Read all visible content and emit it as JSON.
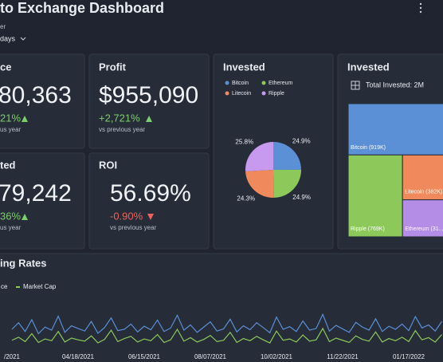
{
  "header": {
    "title": "to Exchange Dashboard",
    "filter_label": "er",
    "filter_value": "days"
  },
  "cards": [
    {
      "title": "ce",
      "value": "80,363",
      "change": "21%",
      "note": "us year"
    },
    {
      "title": "Profit",
      "value": "$955,090",
      "change": "+2,721%",
      "note": "vs previous year"
    },
    {
      "title": "ted",
      "value": "79,242",
      "change": "36%",
      "note": "us year"
    },
    {
      "title": "ROI",
      "value": "56.69%",
      "change": "-0.90%",
      "note": "vs previous year"
    }
  ],
  "chart_data": [
    {
      "type": "pie",
      "title": "Invested",
      "categories": [
        "Bitcoin",
        "Ethereum",
        "Litecoin",
        "Ripple"
      ],
      "values": [
        24.9,
        24.9,
        24.3,
        25.8
      ],
      "value_labels": [
        "24.9%",
        "24.9%",
        "24.3%",
        "25.8%"
      ],
      "colors": [
        "#5b8fd6",
        "#8dc85a",
        "#f08a5d",
        "#c79af0"
      ]
    },
    {
      "type": "treemap",
      "title": "Invested",
      "subtitle": "Total Invested: 2M",
      "values": [
        919000,
        769000,
        382000,
        315000
      ],
      "value_labels": [
        "Bitcoin (919K)",
        "Ripple (769K)",
        "Litecoin (382K)",
        "Ethereum (31..."
      ],
      "colors": [
        "#5b8fd6",
        "#8dc85a",
        "#f08a5d",
        "#b48ee6"
      ]
    },
    {
      "type": "line",
      "title": "ing Rates",
      "ylim": [
        0,
        100
      ],
      "categories": [
        "/2021",
        null,
        null,
        null,
        null,
        null,
        null,
        null,
        null,
        null,
        "04/18/2021",
        null,
        null,
        null,
        null,
        null,
        null,
        null,
        null,
        null,
        "06/15/2021",
        null,
        null,
        null,
        null,
        null,
        null,
        null,
        null,
        null,
        "08/07/2021",
        null,
        null,
        null,
        null,
        null,
        null,
        null,
        null,
        null,
        "10/02/2021",
        null,
        null,
        null,
        null,
        null,
        null,
        null,
        null,
        null,
        "11/22/2021",
        null,
        null,
        null,
        null,
        null,
        null,
        null,
        null,
        null,
        "01/17/2022",
        null,
        null,
        null,
        null,
        null
      ],
      "series": [
        {
          "name": "ce",
          "color": "#5b8fd6",
          "values": [
            40,
            55,
            35,
            62,
            30,
            45,
            38,
            70,
            33,
            48,
            42,
            36,
            58,
            31,
            44,
            66,
            37,
            40,
            52,
            34,
            47,
            39,
            61,
            35,
            43,
            72,
            38,
            50,
            33,
            45,
            57,
            36,
            41,
            63,
            34,
            48,
            39,
            55,
            44,
            32,
            68,
            40,
            46,
            35,
            59,
            38,
            42,
            74,
            36,
            49,
            41,
            33,
            56,
            45,
            38,
            64,
            35,
            47,
            40,
            52,
            37,
            69,
            43,
            50,
            36,
            58
          ]
        },
        {
          "name": "Market Cap",
          "color": "#8dc85a",
          "values": [
            15,
            22,
            12,
            30,
            10,
            18,
            14,
            35,
            11,
            20,
            16,
            13,
            25,
            9,
            17,
            38,
            12,
            19,
            24,
            11,
            18,
            14,
            28,
            10,
            16,
            40,
            13,
            21,
            11,
            17,
            26,
            12,
            15,
            33,
            10,
            19,
            14,
            24,
            16,
            9,
            36,
            15,
            18,
            11,
            27,
            13,
            16,
            42,
            12,
            20,
            15,
            10,
            25,
            17,
            13,
            34,
            11,
            19,
            14,
            22,
            12,
            37,
            16,
            21,
            11,
            28
          ]
        }
      ]
    }
  ]
}
